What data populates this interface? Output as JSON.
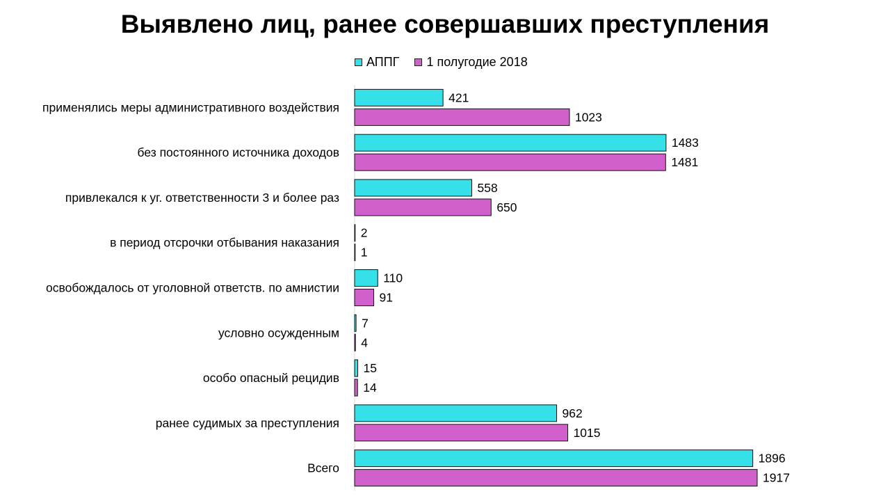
{
  "chart_data": {
    "type": "bar",
    "orientation": "horizontal",
    "title": "Выявлено лиц, ранее совершавших преступления",
    "categories": [
      "применялись меры административного  воздействия",
      "без постоянного источника доходов",
      "привлекался к уг. ответственности  3 и более раз",
      "в период отсрочки отбывания наказания",
      "освобождалось от уголовной ответств. по амнистии",
      "условно осужденным",
      "особо опасный рецидив",
      "ранее судимых за преступления",
      "Всего"
    ],
    "series": [
      {
        "name": "АППГ",
        "color": "#36E0E8",
        "values": [
          421,
          1483,
          558,
          2,
          110,
          7,
          15,
          962,
          1896
        ]
      },
      {
        "name": "1 полугодие 2018",
        "color": "#D160CC",
        "values": [
          1023,
          1481,
          650,
          1,
          91,
          4,
          14,
          1015,
          1917
        ]
      }
    ],
    "legend_position": "top",
    "xlim": [
      0,
      2000
    ],
    "grid": false
  }
}
